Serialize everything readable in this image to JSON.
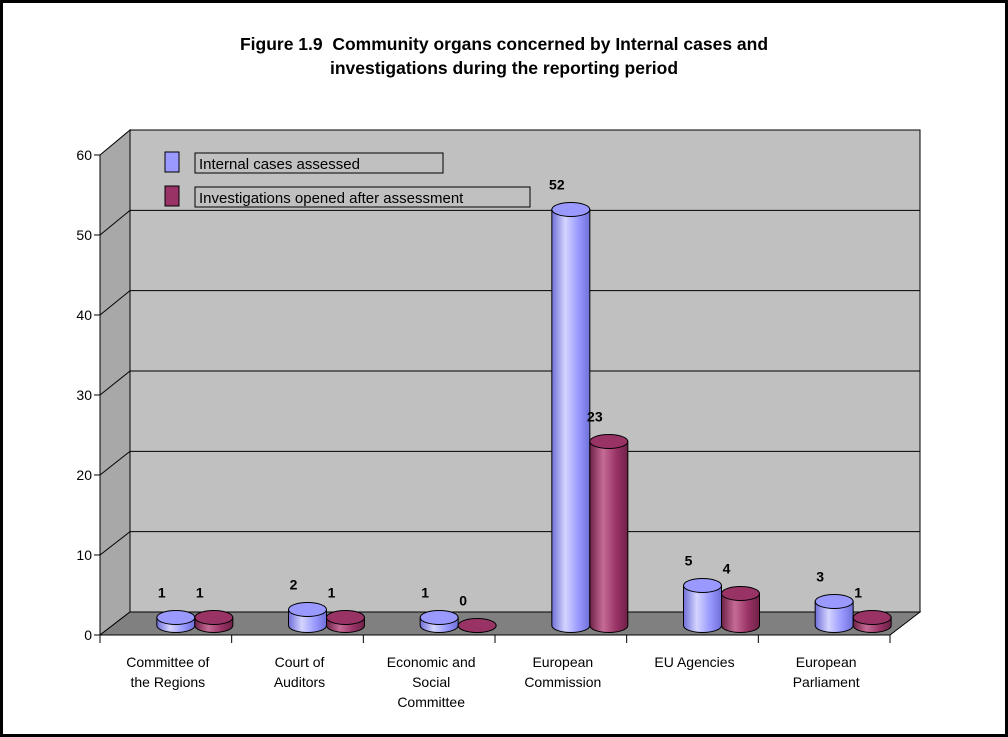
{
  "chart_data": {
    "type": "bar",
    "title_lines": [
      "Figure 1.9  Community organs concerned by Internal cases and",
      "investigations during the reporting period"
    ],
    "categories": [
      [
        "Committee of",
        "the Regions"
      ],
      [
        "Court of",
        "Auditors"
      ],
      [
        "Economic and",
        "Social",
        "Committee"
      ],
      [
        "European",
        "Commission"
      ],
      [
        "EU Agencies"
      ],
      [
        "European",
        "Parliament"
      ]
    ],
    "series": [
      {
        "name": "Internal cases assessed",
        "values": [
          1,
          2,
          1,
          52,
          5,
          3
        ],
        "color": "#9999ff",
        "dark": "#6f6fd9",
        "light": "#d4d4ff"
      },
      {
        "name": "Investigations opened after assessment",
        "values": [
          1,
          1,
          0,
          23,
          4,
          1
        ],
        "color": "#993366",
        "dark": "#6e2147",
        "light": "#c56b95"
      }
    ],
    "yticks": [
      0,
      10,
      20,
      30,
      40,
      50,
      60
    ],
    "ylim": [
      0,
      60
    ],
    "grid": true,
    "legend": "top-left",
    "colors": {
      "wall": "#c0c0c0",
      "side_wall": "#a8a8a8",
      "floor": "#808080"
    }
  }
}
